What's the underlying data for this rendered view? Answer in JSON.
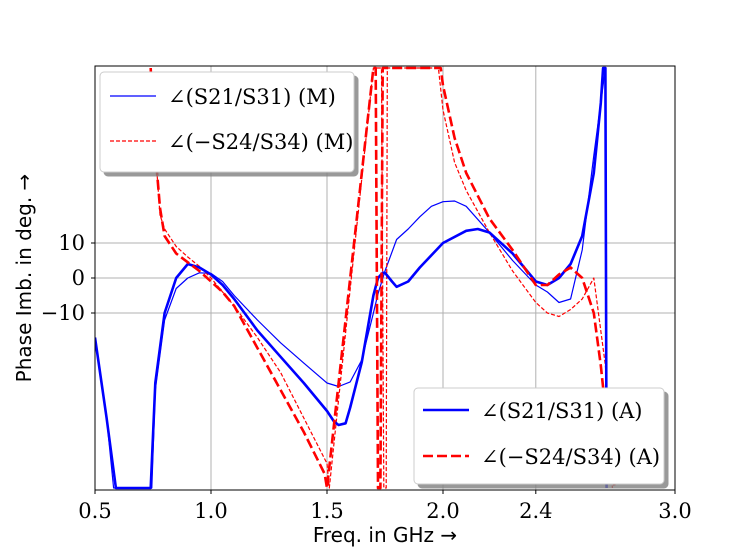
{
  "chart_data": {
    "type": "line",
    "xlabel": "Freq.  in GHz →",
    "ylabel": "Phase Imb.  in deg.  →",
    "xlim": [
      0.5,
      3.0
    ],
    "ylim": [
      -60,
      60
    ],
    "xticks": [
      0.5,
      1.0,
      1.5,
      2.0,
      2.4,
      3.0
    ],
    "xtick_labels": [
      "0.5",
      "1.0",
      "1.5",
      "2.0",
      "2.4",
      "3.0"
    ],
    "yticks": [
      10,
      0,
      -10
    ],
    "ytick_labels": [
      "10",
      "0",
      "−10"
    ],
    "grid": true,
    "legends": [
      {
        "location": "upper-left",
        "entries": [
          "∠(S21/S31) (M)",
          "∠(−S24/S34) (M)"
        ]
      },
      {
        "location": "lower-right",
        "entries": [
          "∠(S21/S31) (A)",
          "∠(−S24/S34) (A)"
        ]
      }
    ],
    "series": [
      {
        "name": "∠(S21/S31) (M)",
        "color": "#0000ff",
        "style": "solid",
        "width": 1.2,
        "x": [
          0.5,
          0.55,
          0.58,
          0.745,
          0.76,
          0.8,
          0.85,
          0.9,
          0.95,
          1.0,
          1.05,
          1.1,
          1.2,
          1.3,
          1.4,
          1.5,
          1.55,
          1.6,
          1.65,
          1.7,
          1.72,
          1.75,
          1.8,
          1.85,
          1.9,
          1.95,
          2.0,
          2.05,
          2.1,
          2.2,
          2.3,
          2.4,
          2.45,
          2.5,
          2.55,
          2.6,
          2.65,
          2.7
        ],
        "y": [
          -17,
          -40,
          -60,
          -60,
          -32,
          -12,
          -3,
          0,
          1.5,
          1.3,
          -1,
          -5,
          -12,
          -18.5,
          -24.3,
          -30,
          -31,
          -29.7,
          -23.4,
          -10,
          -4.5,
          2,
          11,
          14,
          17.5,
          20.5,
          21.8,
          22,
          20.5,
          13,
          5,
          -2,
          -4,
          -7,
          -6,
          8,
          35,
          60
        ]
      },
      {
        "name": "∠(−S24/S34) (M)",
        "color": "#ff0000",
        "style": "dashed",
        "width": 1.2,
        "x": [
          0.74,
          0.75,
          0.78,
          0.8,
          0.85,
          0.9,
          0.95,
          1.0,
          1.05,
          1.1,
          1.2,
          1.3,
          1.4,
          1.5,
          1.51,
          1.7,
          1.735,
          1.745,
          1.755,
          1.76,
          1.98,
          2.0,
          2.05,
          2.1,
          2.2,
          2.3,
          2.4,
          2.45,
          2.5,
          2.55,
          2.6,
          2.65,
          2.7,
          2.73
        ],
        "y": [
          60,
          46,
          18,
          14,
          9,
          6,
          3.3,
          0,
          -4,
          -8,
          -17,
          -27,
          -40,
          -53,
          -60,
          60,
          60,
          -60,
          -60,
          60,
          60,
          48,
          33,
          25,
          13,
          2,
          -7,
          -10,
          -11,
          -9,
          -6,
          0,
          -25,
          -60
        ]
      },
      {
        "name": "∠(S21/S31) (A)",
        "color": "#0000ff",
        "style": "solid",
        "width": 2.6,
        "x": [
          0.5,
          0.55,
          0.59,
          0.74,
          0.76,
          0.8,
          0.85,
          0.9,
          0.95,
          1.0,
          1.05,
          1.1,
          1.2,
          1.3,
          1.4,
          1.5,
          1.53,
          1.55,
          1.58,
          1.6,
          1.65,
          1.7,
          1.72,
          1.74,
          1.75,
          1.78,
          1.8,
          1.85,
          1.9,
          2.0,
          2.1,
          2.15,
          2.2,
          2.3,
          2.4,
          2.45,
          2.5,
          2.55,
          2.6,
          2.65,
          2.68,
          2.69,
          2.7,
          2.705
        ],
        "y": [
          -17,
          -40,
          -60,
          -60,
          -30,
          -10,
          0,
          4,
          3,
          1,
          -2,
          -6,
          -15,
          -22.5,
          -30,
          -38,
          -41,
          -42,
          -41.5,
          -37,
          -24,
          -5,
          0,
          1.5,
          1.5,
          -1,
          -2.5,
          -1,
          3,
          10,
          13.5,
          14,
          13,
          7,
          -1,
          -2,
          0,
          4,
          12,
          30,
          50,
          60,
          60,
          -60
        ]
      },
      {
        "name": "∠(−S24/S34) (A)",
        "color": "#ff0000",
        "style": "dashed",
        "width": 2.6,
        "x": [
          0.74,
          0.75,
          0.78,
          0.8,
          0.85,
          0.9,
          0.95,
          1.0,
          1.05,
          1.1,
          1.2,
          1.3,
          1.4,
          1.49,
          1.5,
          1.7,
          1.71,
          1.72,
          1.73,
          1.74,
          1.99,
          2.0,
          2.05,
          2.1,
          2.2,
          2.3,
          2.4,
          2.45,
          2.5,
          2.55,
          2.6,
          2.65,
          2.68,
          2.72,
          2.74
        ],
        "y": [
          60,
          44,
          20,
          12,
          7,
          4.5,
          2,
          -1,
          -4,
          -8,
          -20,
          -32,
          -44,
          -56,
          -60,
          60,
          60,
          -60,
          -60,
          60,
          60,
          55,
          40,
          30,
          17,
          8,
          -2,
          -2,
          1,
          3,
          0,
          -10,
          -25,
          -50,
          -60
        ]
      }
    ]
  }
}
